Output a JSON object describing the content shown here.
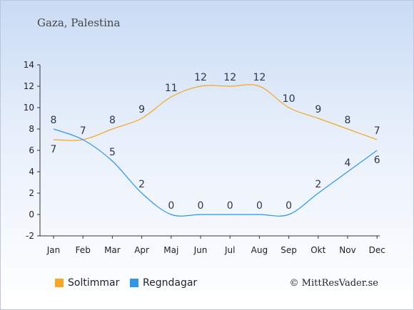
{
  "title": "Gaza, Palestina",
  "credit": "© MittResVader.se",
  "chart_data": {
    "type": "line",
    "x": [
      "Jan",
      "Feb",
      "Mar",
      "Apr",
      "Maj",
      "Jun",
      "Jul",
      "Aug",
      "Sep",
      "Okt",
      "Nov",
      "Dec"
    ],
    "ylim": [
      -2,
      14
    ],
    "yticks": [
      -2,
      0,
      2,
      4,
      6,
      8,
      10,
      12,
      14
    ],
    "legend_position": "bottom-left",
    "grid": false,
    "series": [
      {
        "name": "Soltimmar",
        "color": "#f5a623",
        "values": [
          7,
          7,
          8,
          9,
          11,
          12,
          12,
          12,
          10,
          9,
          8,
          7
        ]
      },
      {
        "name": "Regndagar",
        "color": "#2f96e8",
        "values": [
          8,
          7,
          5,
          2,
          0,
          0,
          0,
          0,
          0,
          2,
          4,
          6
        ]
      }
    ]
  }
}
